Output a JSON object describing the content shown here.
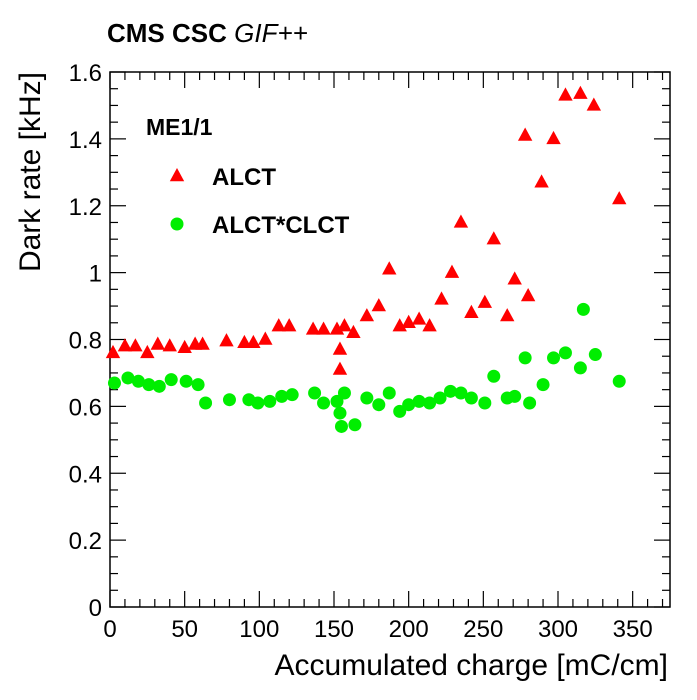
{
  "header": {
    "experiment": "CMS CSC",
    "facility": "GIF++"
  },
  "chart_data": {
    "type": "scatter",
    "xlabel": "Accumulated charge [mC/cm]",
    "ylabel": "Dark rate [kHz]",
    "xlim": [
      0,
      375
    ],
    "ylim": [
      0,
      1.6
    ],
    "xticks": [
      0,
      50,
      100,
      150,
      200,
      250,
      300,
      350
    ],
    "yticks": [
      0,
      0.2,
      0.4,
      0.6,
      0.8,
      1,
      1.2,
      1.4,
      1.6
    ],
    "grid": false,
    "legend_position": "top-left",
    "legend_title": "ME1/1",
    "series": [
      {
        "name": "ALCT",
        "marker": "triangle",
        "color": "#ff0000",
        "points": [
          [
            2,
            0.76
          ],
          [
            10,
            0.78
          ],
          [
            17,
            0.78
          ],
          [
            25,
            0.76
          ],
          [
            32,
            0.785
          ],
          [
            40,
            0.78
          ],
          [
            50,
            0.775
          ],
          [
            57,
            0.785
          ],
          [
            62,
            0.785
          ],
          [
            78,
            0.795
          ],
          [
            90,
            0.79
          ],
          [
            96,
            0.79
          ],
          [
            104,
            0.8
          ],
          [
            113,
            0.84
          ],
          [
            120,
            0.84
          ],
          [
            136,
            0.83
          ],
          [
            143,
            0.83
          ],
          [
            152,
            0.83
          ],
          [
            154,
            0.71
          ],
          [
            154,
            0.77
          ],
          [
            157,
            0.84
          ],
          [
            163,
            0.82
          ],
          [
            172,
            0.87
          ],
          [
            180,
            0.9
          ],
          [
            187,
            1.01
          ],
          [
            194,
            0.84
          ],
          [
            200,
            0.85
          ],
          [
            207,
            0.86
          ],
          [
            214,
            0.84
          ],
          [
            222,
            0.92
          ],
          [
            229,
            1.0
          ],
          [
            235,
            1.15
          ],
          [
            242,
            0.88
          ],
          [
            251,
            0.91
          ],
          [
            257,
            1.1
          ],
          [
            266,
            0.87
          ],
          [
            271,
            0.98
          ],
          [
            278,
            1.41
          ],
          [
            280,
            0.93
          ],
          [
            289,
            1.27
          ],
          [
            297,
            1.4
          ],
          [
            305,
            1.53
          ],
          [
            315,
            1.535
          ],
          [
            324,
            1.5
          ],
          [
            341,
            1.22
          ]
        ]
      },
      {
        "name": "ALCT*CLCT",
        "marker": "circle",
        "color": "#00ee00",
        "points": [
          [
            3,
            0.67
          ],
          [
            12,
            0.685
          ],
          [
            19,
            0.675
          ],
          [
            26,
            0.665
          ],
          [
            33,
            0.66
          ],
          [
            41,
            0.68
          ],
          [
            51,
            0.675
          ],
          [
            59,
            0.665
          ],
          [
            64,
            0.61
          ],
          [
            80,
            0.62
          ],
          [
            93,
            0.62
          ],
          [
            99,
            0.61
          ],
          [
            107,
            0.615
          ],
          [
            115,
            0.63
          ],
          [
            122,
            0.635
          ],
          [
            137,
            0.64
          ],
          [
            143,
            0.61
          ],
          [
            152,
            0.615
          ],
          [
            154,
            0.58
          ],
          [
            155,
            0.54
          ],
          [
            157,
            0.64
          ],
          [
            164,
            0.545
          ],
          [
            172,
            0.625
          ],
          [
            180,
            0.605
          ],
          [
            187,
            0.64
          ],
          [
            194,
            0.585
          ],
          [
            200,
            0.605
          ],
          [
            207,
            0.615
          ],
          [
            214,
            0.61
          ],
          [
            221,
            0.625
          ],
          [
            228,
            0.645
          ],
          [
            235,
            0.64
          ],
          [
            242,
            0.625
          ],
          [
            251,
            0.61
          ],
          [
            257,
            0.69
          ],
          [
            266,
            0.625
          ],
          [
            271,
            0.63
          ],
          [
            278,
            0.745
          ],
          [
            281,
            0.61
          ],
          [
            290,
            0.665
          ],
          [
            297,
            0.745
          ],
          [
            305,
            0.76
          ],
          [
            315,
            0.715
          ],
          [
            317,
            0.89
          ],
          [
            325,
            0.755
          ],
          [
            341,
            0.675
          ]
        ]
      }
    ]
  }
}
